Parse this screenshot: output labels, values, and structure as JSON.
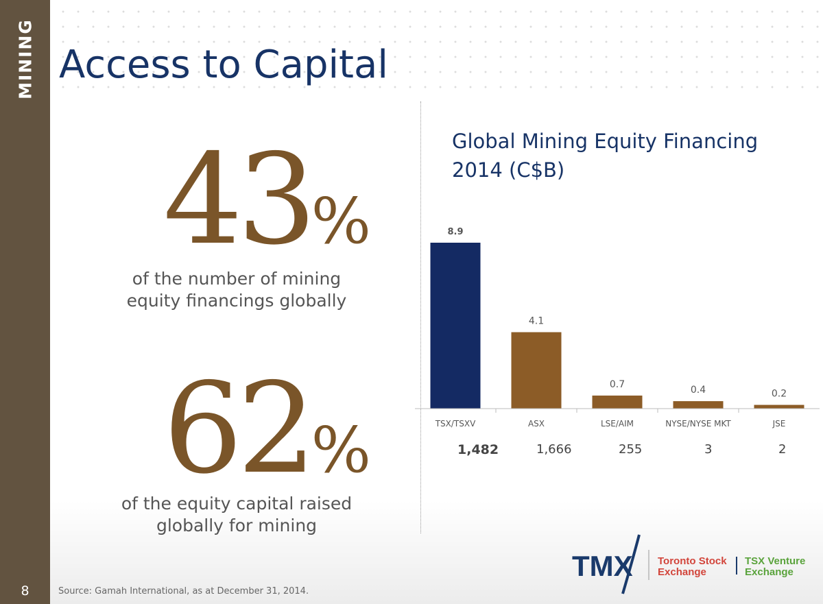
{
  "sidebar": {
    "section_label": "MINING",
    "page_number": "8"
  },
  "title": "Access to Capital",
  "stats": [
    {
      "number": "43",
      "symbol": "%",
      "caption_line1": "of the number of mining",
      "caption_line2": "equity financings globally"
    },
    {
      "number": "62",
      "symbol": "%",
      "caption_line1": "of the equity capital raised",
      "caption_line2": "globally for mining"
    }
  ],
  "chart_title_line1": "Global Mining Equity Financing",
  "chart_title_line2": "2014 (C$B)",
  "chart_data": {
    "type": "bar",
    "title": "Global Mining Equity Financing 2014 (C$B)",
    "categories": [
      "TSX/TSXV",
      "ASX",
      "LSE/AIM",
      "NYSE/NYSE MKT",
      "JSE"
    ],
    "values": [
      8.9,
      4.1,
      0.7,
      0.4,
      0.2
    ],
    "value_labels": [
      "8.9",
      "4.1",
      "0.7",
      "0.4",
      "0.2"
    ],
    "colors": [
      "#142a63",
      "#8c5c27",
      "#8c5c27",
      "#8c5c27",
      "#8c5c27"
    ],
    "ylim": [
      0,
      8.9
    ],
    "grid": false
  },
  "financing_counts": [
    "1,482",
    "1,666",
    "255",
    "3",
    "2"
  ],
  "source": "Source:  Gamah International, as at December 31, 2014.",
  "logo": {
    "brand": "TMX",
    "exchange1_line1": "Toronto Stock",
    "exchange1_line2": "Exchange",
    "exchange2_line1": "TSX Venture",
    "exchange2_line2": "Exchange",
    "colors": {
      "tmx": "#1a3a6b",
      "tsx": "#d2453b",
      "venture": "#5aa33c"
    }
  }
}
